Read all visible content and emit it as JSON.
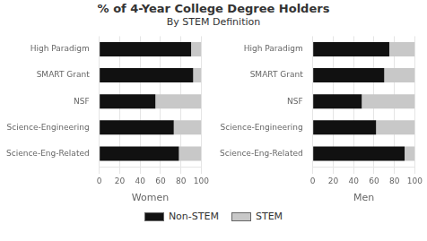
{
  "title": "% of 4-Year College Degree Holders",
  "subtitle": "By STEM Definition",
  "legend": "bottom",
  "chart_data": [
    {
      "type": "bar",
      "orientation": "horizontal",
      "stacked": true,
      "grid": true,
      "xlabel": "Women",
      "categories": [
        "High Paradigm",
        "SMART Grant",
        "NSF",
        "Science-Engineering",
        "Science-Eng-Related"
      ],
      "series": [
        {
          "name": "Non-STEM",
          "color": "#111111",
          "values": [
            90,
            92,
            55,
            73,
            78
          ]
        },
        {
          "name": "STEM",
          "color": "#c8c8c8",
          "values": [
            10,
            8,
            45,
            27,
            22
          ]
        }
      ],
      "xlim": [
        0,
        100
      ],
      "xticks": [
        0,
        20,
        40,
        60,
        80,
        100
      ]
    },
    {
      "type": "bar",
      "orientation": "horizontal",
      "stacked": true,
      "grid": true,
      "xlabel": "Men",
      "categories": [
        "High Paradigm",
        "SMART Grant",
        "NSF",
        "Science-Engineering",
        "Science-Eng-Related"
      ],
      "series": [
        {
          "name": "Non-STEM",
          "color": "#111111",
          "values": [
            75,
            70,
            48,
            62,
            90
          ]
        },
        {
          "name": "STEM",
          "color": "#c8c8c8",
          "values": [
            25,
            30,
            52,
            38,
            10
          ]
        }
      ],
      "xlim": [
        0,
        100
      ],
      "xticks": [
        0,
        20,
        40,
        60,
        80,
        100
      ]
    }
  ]
}
